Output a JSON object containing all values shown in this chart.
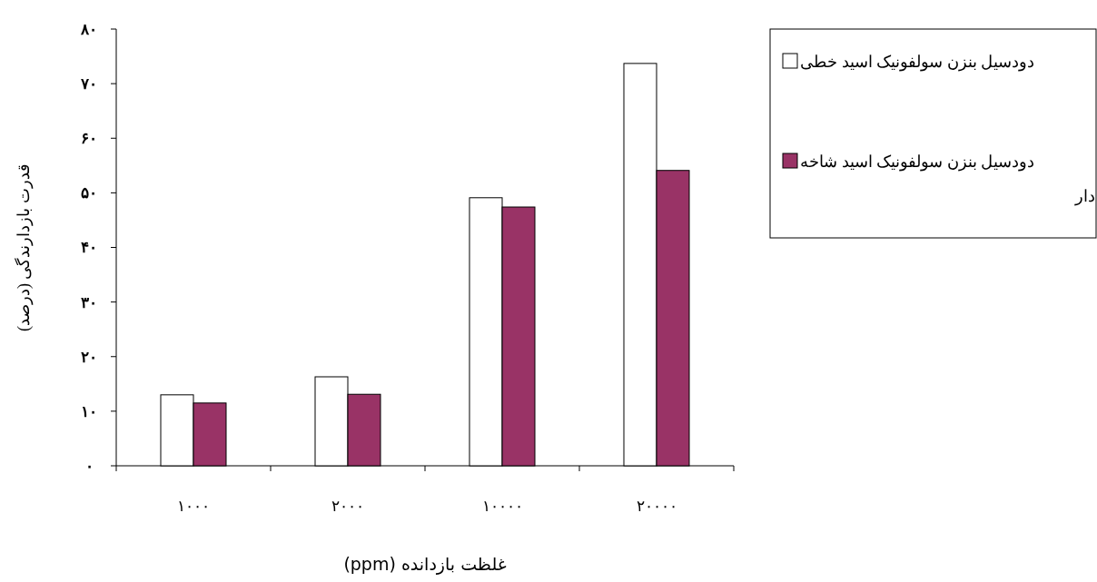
{
  "chart_data": {
    "type": "bar",
    "xlabel": "غلظت بازدانده (ppm)",
    "ylabel": "قدرت بازدارندگی (درصد)",
    "categories": [
      "۱۰۰۰",
      "۲۰۰۰",
      "۱۰۰۰۰",
      "۲۰۰۰۰"
    ],
    "series": [
      {
        "name": "دودسیل بنزن سولفونیک اسید خطی",
        "color": "#ffffff",
        "values": [
          13,
          16.3,
          49.1,
          73.7
        ]
      },
      {
        "name": "دودسیل بنزن سولفونیک اسید شاخه دار",
        "color": "#993366",
        "values": [
          11.5,
          13.1,
          47.4,
          54.1
        ]
      }
    ],
    "ylim": [
      0,
      80
    ],
    "yticks": [
      {
        "value": 0,
        "label": "۰"
      },
      {
        "value": 10,
        "label": "۱۰"
      },
      {
        "value": 20,
        "label": "۲۰"
      },
      {
        "value": 30,
        "label": "۳۰"
      },
      {
        "value": 40,
        "label": "۴۰"
      },
      {
        "value": 50,
        "label": "۵۰"
      },
      {
        "value": 60,
        "label": "۶۰"
      },
      {
        "value": 70,
        "label": "۷۰"
      },
      {
        "value": 80,
        "label": "۸۰"
      }
    ],
    "grid": false,
    "legend": "right"
  }
}
